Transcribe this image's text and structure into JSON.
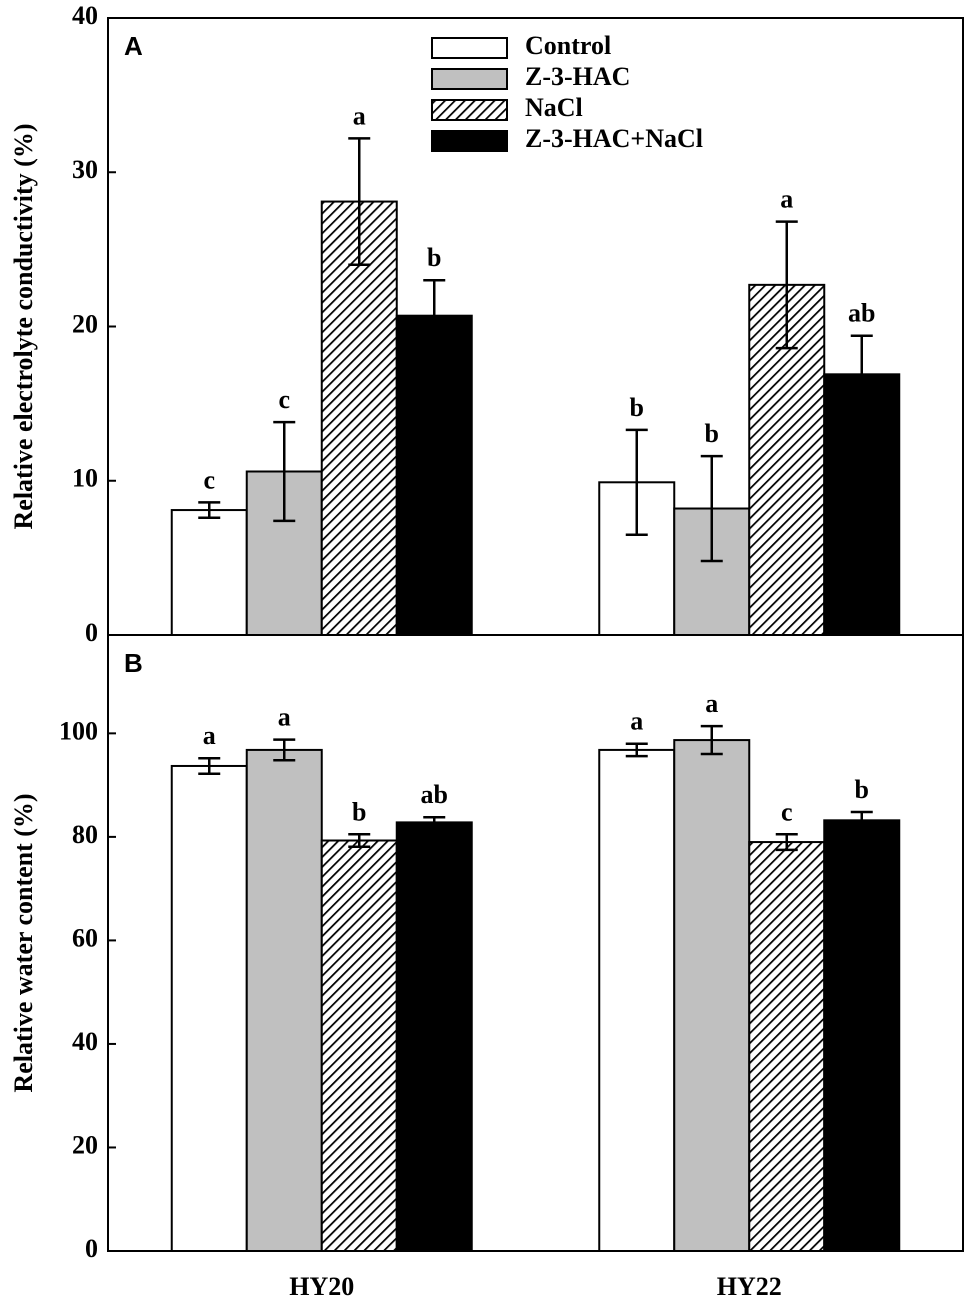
{
  "chart_data": [
    {
      "type": "bar",
      "title": "A",
      "y_label": "Relative electrolyte conductivity (%)",
      "ylim": [
        0,
        40
      ],
      "yticks": [
        0,
        10,
        20,
        30,
        40
      ],
      "legend": "top",
      "series": [
        {
          "name": "Control",
          "color": "#ffffff",
          "values": [
            8.1,
            9.9
          ],
          "errors": [
            0.5,
            3.4
          ],
          "labels": [
            "c",
            "b"
          ]
        },
        {
          "name": "Z-3-HAC",
          "color": "#c0c0c0",
          "values": [
            10.6,
            8.2
          ],
          "errors": [
            3.2,
            3.4
          ],
          "labels": [
            "c",
            "b"
          ]
        },
        {
          "name": "NaCl",
          "color": "#000000",
          "hatch": true,
          "values": [
            28.1,
            22.7
          ],
          "errors": [
            4.1,
            4.1
          ],
          "labels": [
            "a",
            "a"
          ]
        },
        {
          "name": "Z-3-HAC+NaCl",
          "color": "#000000",
          "values": [
            20.7,
            16.9
          ],
          "errors": [
            2.3,
            2.5
          ],
          "labels": [
            "b",
            "ab"
          ]
        }
      ]
    },
    {
      "type": "bar",
      "title": "B",
      "y_label": "Relative water content (%)",
      "categories": [
        "HY20",
        "HY22"
      ],
      "ylim": [
        0,
        119
      ],
      "yticks": [
        0,
        20,
        40,
        60,
        80,
        100
      ],
      "series": [
        {
          "color": "#ffffff",
          "values": [
            93.7,
            96.8
          ],
          "errors": [
            1.5,
            1.2
          ],
          "labels": [
            "a",
            "a"
          ]
        },
        {
          "color": "#c0c0c0",
          "values": [
            96.8,
            98.7
          ],
          "errors": [
            2.0,
            2.7
          ],
          "labels": [
            "a",
            "a"
          ]
        },
        {
          "color": "#000000",
          "hatch": true,
          "values": [
            79.3,
            79.0
          ],
          "errors": [
            1.2,
            1.5
          ],
          "labels": [
            "b",
            "c"
          ]
        },
        {
          "color": "#000000",
          "values": [
            82.8,
            83.2
          ],
          "errors": [
            1.0,
            1.6
          ],
          "labels": [
            "ab",
            "b"
          ]
        }
      ]
    }
  ]
}
